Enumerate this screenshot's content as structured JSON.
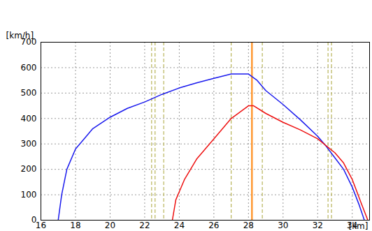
{
  "chart_data": {
    "type": "line",
    "y_label": "[km/h]",
    "x_label": "[km]",
    "xlim": [
      16,
      35
    ],
    "xticks": [
      16,
      18,
      20,
      22,
      24,
      26,
      28,
      30,
      32,
      34
    ],
    "ylim": [
      0,
      700
    ],
    "yticks": [
      0,
      100,
      200,
      300,
      400,
      500,
      600,
      700
    ],
    "grid": true,
    "series": [
      {
        "color": "#1a1aee",
        "x": [
          17.0,
          17.2,
          17.5,
          18.0,
          18.5,
          19.0,
          20.0,
          21.0,
          22.0,
          23.0,
          24.0,
          25.0,
          26.0,
          27.0,
          28.0,
          28.5,
          29.0,
          30.0,
          31.0,
          32.0,
          32.5,
          33.0,
          33.5,
          34.0,
          34.4,
          34.7
        ],
        "values": [
          0,
          100,
          200,
          280,
          320,
          360,
          405,
          440,
          465,
          495,
          520,
          540,
          558,
          575,
          575,
          550,
          510,
          455,
          395,
          330,
          290,
          245,
          200,
          130,
          60,
          0
        ]
      },
      {
        "color": "#ee1111",
        "x": [
          23.6,
          23.8,
          24.3,
          25.0,
          25.5,
          26.0,
          27.0,
          28.0,
          28.3,
          29.0,
          30.0,
          31.0,
          32.0,
          33.0,
          33.5,
          34.0,
          34.5,
          34.9
        ],
        "values": [
          0,
          80,
          160,
          240,
          280,
          320,
          400,
          450,
          450,
          420,
          385,
          355,
          320,
          265,
          225,
          160,
          70,
          0
        ]
      }
    ],
    "reference_lines": [
      22.4,
      22.6,
      23.1,
      27.0,
      28.8,
      32.6,
      32.8
    ],
    "reference_color": "#b8b45a",
    "highlight_line": 28.2,
    "highlight_color": "#ff9933"
  }
}
